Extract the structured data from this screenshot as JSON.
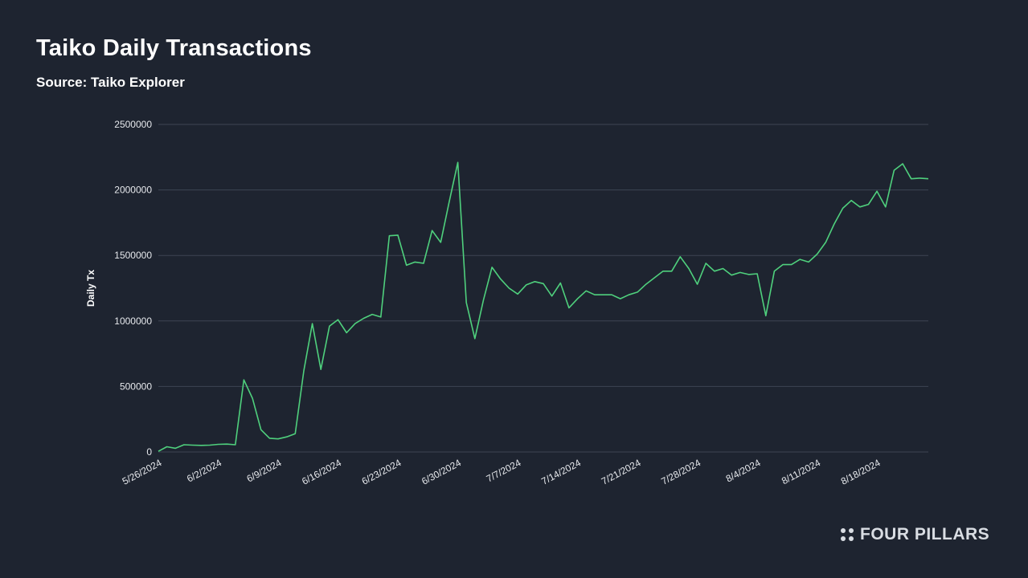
{
  "title": "Taiko Daily Transactions",
  "subtitle": "Source: Taiko Explorer",
  "brand": {
    "name": "FOUR PILLARS",
    "icon": "four-dots-logo-icon"
  },
  "colors": {
    "background": "#1e2430",
    "line": "#4fd07d",
    "grid": "#3d4452",
    "text": "#ffffff",
    "tick_text": "#e6e8ec"
  },
  "chart_data": {
    "type": "line",
    "title": "Taiko Daily Transactions",
    "subtitle": "Source: Taiko Explorer",
    "xlabel": "",
    "ylabel": "Daily Tx",
    "ylim": [
      0,
      2500000
    ],
    "y_ticks": [
      "0",
      "500000",
      "1000000",
      "1500000",
      "2000000",
      "2500000"
    ],
    "x_tick_labels": [
      "5/26/2024",
      "6/2/2024",
      "6/9/2024",
      "6/16/2024",
      "6/23/2024",
      "6/30/2024",
      "7/7/2024",
      "7/14/2024",
      "7/21/2024",
      "7/28/2024",
      "8/4/2024",
      "8/11/2024",
      "8/18/2024"
    ],
    "grid": true,
    "legend": "none",
    "x_start_date": "5/26/2024",
    "series": [
      {
        "values": [
          5000,
          40000,
          28000,
          55000,
          52000,
          50000,
          52000,
          58000,
          60000,
          55000,
          550000,
          410000,
          170000,
          105000,
          100000,
          115000,
          140000,
          620000,
          980000,
          630000,
          960000,
          1010000,
          910000,
          980000,
          1020000,
          1050000,
          1030000,
          1650000,
          1655000,
          1425000,
          1450000,
          1440000,
          1690000,
          1600000,
          1910000,
          2210000,
          1140000,
          865000,
          1160000,
          1410000,
          1320000,
          1250000,
          1205000,
          1275000,
          1300000,
          1285000,
          1190000,
          1290000,
          1100000,
          1170000,
          1230000,
          1200000,
          1200000,
          1200000,
          1170000,
          1200000,
          1220000,
          1280000,
          1330000,
          1380000,
          1380000,
          1490000,
          1400000,
          1280000,
          1440000,
          1380000,
          1400000,
          1350000,
          1370000,
          1355000,
          1360000,
          1040000,
          1380000,
          1430000,
          1430000,
          1470000,
          1450000,
          1510000,
          1600000,
          1740000,
          1860000,
          1920000,
          1870000,
          1890000,
          1990000,
          1870000,
          2150000,
          2200000,
          2085000,
          2090000,
          2085000
        ]
      }
    ]
  }
}
